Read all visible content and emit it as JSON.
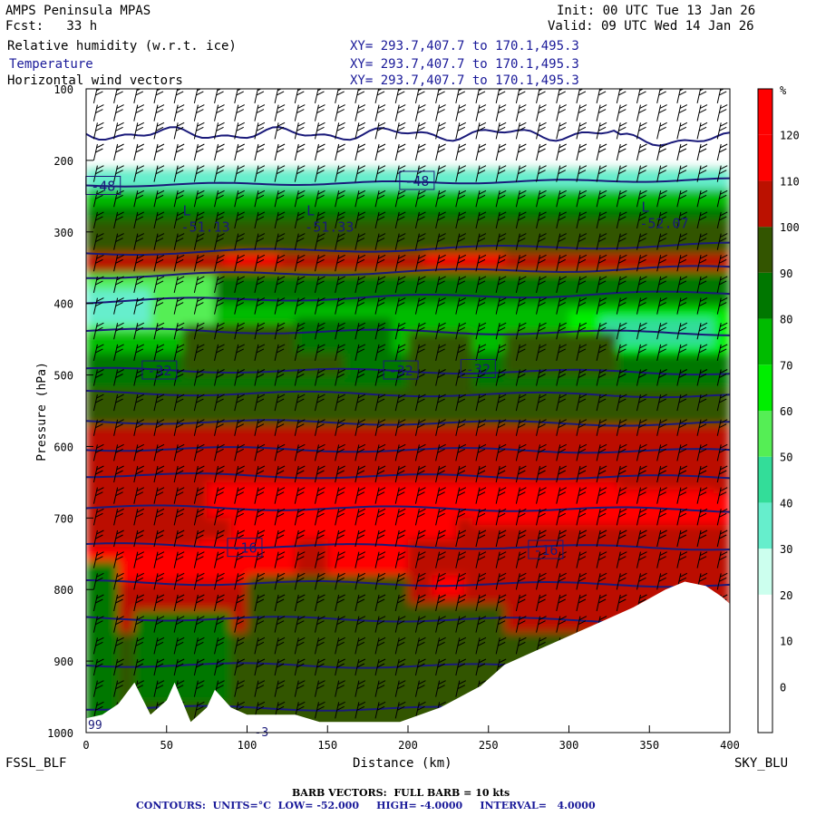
{
  "header": {
    "title": "AMPS Peninsula MPAS",
    "fcst": "Fcst:   33 h",
    "init": "Init: 00 UTC Tue 13 Jan 26",
    "valid": "Valid: 09 UTC Wed 14 Jan 26",
    "fields": [
      {
        "name": "Relative humidity (w.r.t. ice)",
        "xy": "XY= 293.7,407.7 to 170.1,495.3"
      },
      {
        "name": "Temperature",
        "xy": "XY= 293.7,407.7 to 170.1,495.3"
      },
      {
        "name": "Horizontal wind vectors",
        "xy": "XY= 293.7,407.7 to 170.1,495.3"
      }
    ]
  },
  "colors": {
    "bands": [
      "#ffffff",
      "#ffffff",
      "#ffffff",
      "#ccffee",
      "#66eecc",
      "#33dd99",
      "#55ee55",
      "#00ee00",
      "#00bb00",
      "#007700",
      "#335500",
      "#bb1100",
      "#ff0000"
    ],
    "contour": "#1a1a7a",
    "terrain": "#ffffff"
  },
  "chart_data": {
    "type": "heatmap",
    "xlabel": "Distance (km)",
    "ylabel": "Pressure (hPa)",
    "xlim": [
      0,
      400
    ],
    "ylim": [
      1000,
      100
    ],
    "xticks": [
      0,
      50,
      100,
      150,
      200,
      250,
      300,
      350,
      400
    ],
    "yticks": [
      100,
      200,
      300,
      400,
      500,
      600,
      700,
      800,
      900,
      1000
    ],
    "left_label": "FSSL_BLF",
    "right_label": "SKY_BLU",
    "colorbar": {
      "unit": "%",
      "levels": [
        -10,
        0,
        10,
        20,
        30,
        40,
        50,
        60,
        70,
        80,
        90,
        100,
        110,
        120,
        130
      ],
      "labels": [
        "0",
        "10",
        "20",
        "30",
        "40",
        "50",
        "60",
        "70",
        "80",
        "90",
        "100",
        "110",
        "120"
      ]
    },
    "temperature_contours": {
      "low": -52,
      "high": -4,
      "interval": 4,
      "labels": [
        {
          "text": "-48",
          "x": 10,
          "p": 235
        },
        {
          "text": "-48",
          "x": 205,
          "p": 228
        },
        {
          "text": "-32",
          "x": 45,
          "p": 493
        },
        {
          "text": "-32",
          "x": 195,
          "p": 493
        },
        {
          "text": "-32",
          "x": 243,
          "p": 491
        },
        {
          "text": "-16",
          "x": 98,
          "p": 741
        },
        {
          "text": "-16",
          "x": 285,
          "p": 744
        }
      ]
    },
    "lows": [
      {
        "text": "L",
        "value": "-51.13",
        "x": 60,
        "p": 292
      },
      {
        "text": "L",
        "value": "-51.33",
        "x": 137,
        "p": 292
      },
      {
        "text": "L",
        "value": "-52.07",
        "x": 345,
        "p": 287
      }
    ],
    "annotations": [
      "99",
      "-3"
    ],
    "terrain_profile": [
      [
        0,
        980
      ],
      [
        10,
        975
      ],
      [
        20,
        960
      ],
      [
        30,
        930
      ],
      [
        40,
        975
      ],
      [
        50,
        955
      ],
      [
        55,
        930
      ],
      [
        65,
        985
      ],
      [
        75,
        965
      ],
      [
        80,
        940
      ],
      [
        90,
        965
      ],
      [
        100,
        975
      ],
      [
        115,
        975
      ],
      [
        130,
        975
      ],
      [
        145,
        985
      ],
      [
        170,
        985
      ],
      [
        195,
        985
      ],
      [
        220,
        965
      ],
      [
        245,
        935
      ],
      [
        260,
        905
      ],
      [
        280,
        885
      ],
      [
        300,
        865
      ],
      [
        320,
        845
      ],
      [
        340,
        825
      ],
      [
        360,
        800
      ],
      [
        372,
        789
      ],
      [
        385,
        795
      ],
      [
        395,
        810
      ],
      [
        400,
        820
      ]
    ]
  },
  "footer": {
    "barb": "BARB VECTORS:  FULL BARB = 10 kts",
    "contours": "CONTOURS:  UNITS=°C  LOW= -52.000     HIGH= -4.0000     INTERVAL=   4.0000"
  }
}
